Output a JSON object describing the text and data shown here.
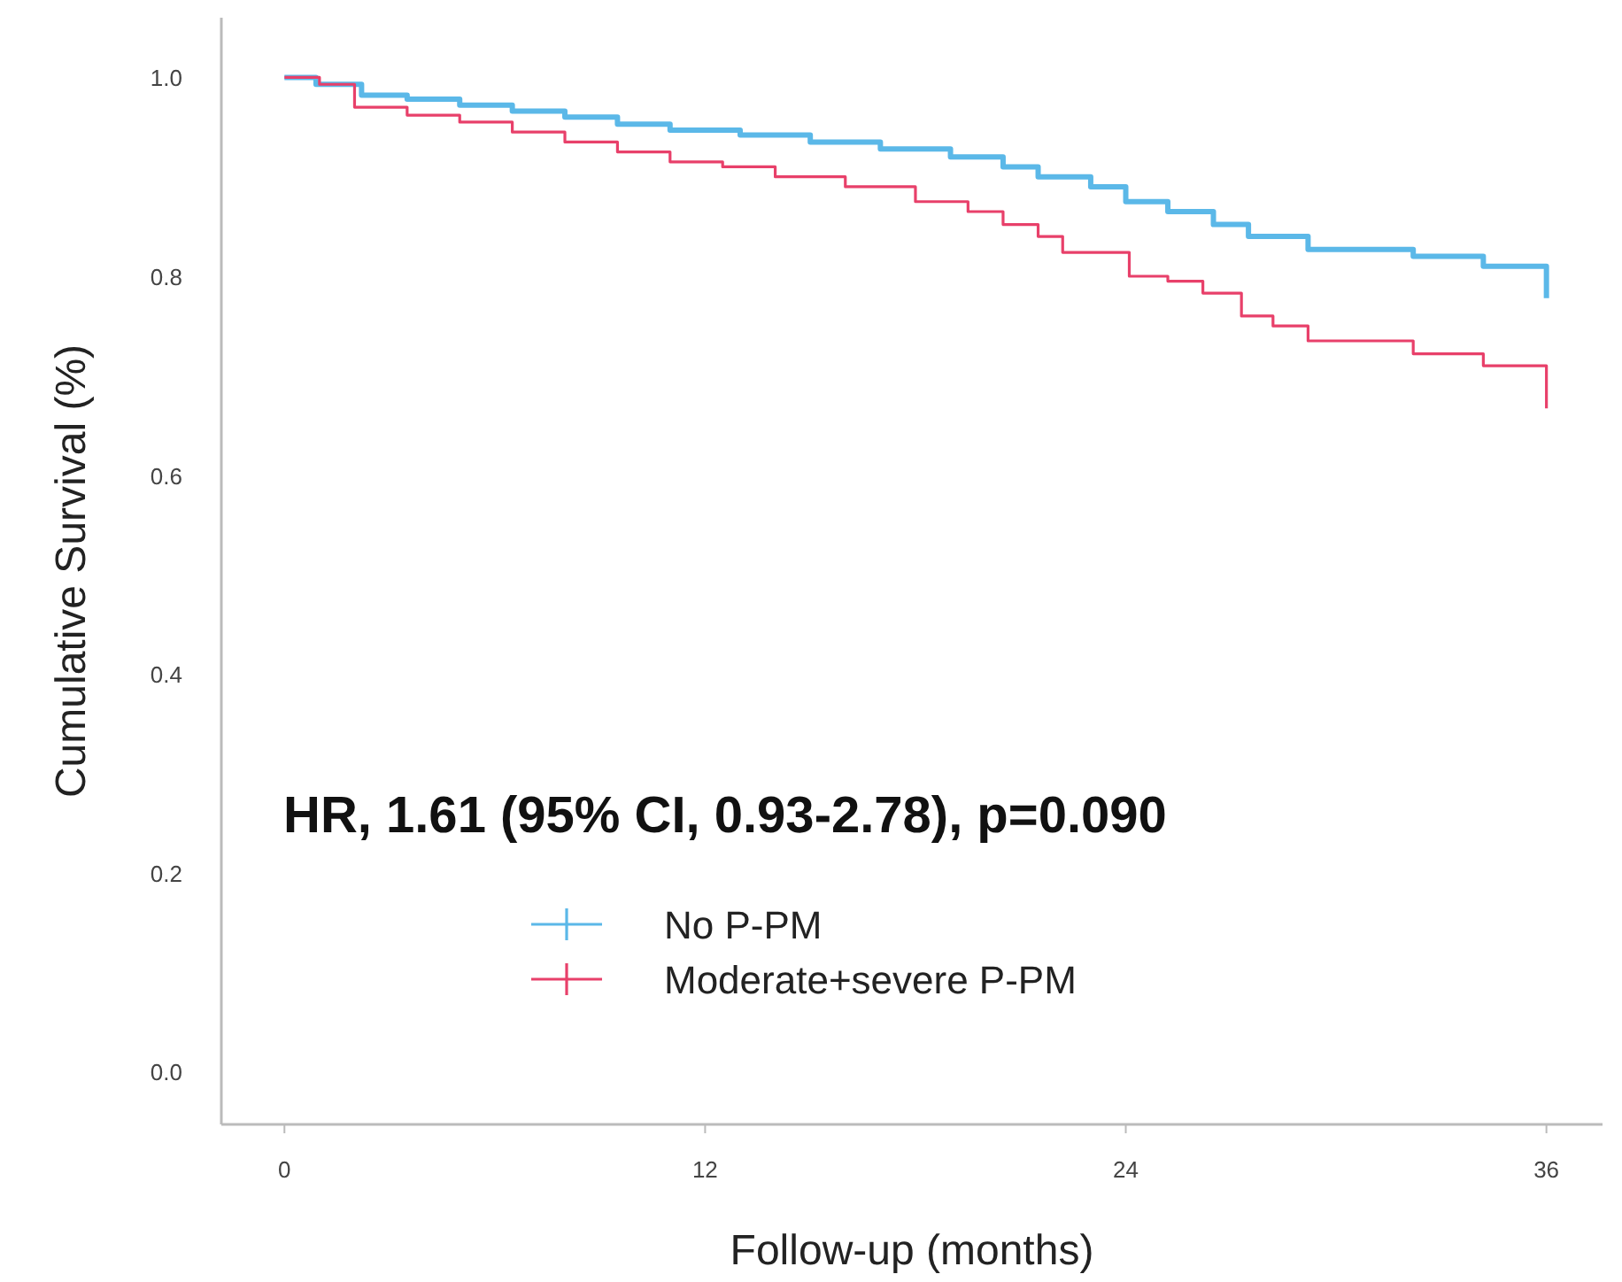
{
  "chart_data": {
    "type": "step",
    "xlabel": "Follow-up (months)",
    "ylabel": "Cumulative Survival (%)",
    "xlim": [
      -1.8,
      37.6
    ],
    "ylim": [
      -0.053,
      1.06
    ],
    "xticks": [
      0,
      12,
      24,
      36
    ],
    "yticks": [
      {
        "value": 0,
        "label": "0.0"
      },
      {
        "value": 0.2,
        "label": "0.2"
      },
      {
        "value": 0.4,
        "label": "0.4"
      },
      {
        "value": 0.6,
        "label": "0.6"
      },
      {
        "value": 0.8,
        "label": "0.8"
      },
      {
        "value": 1,
        "label": "1.0"
      }
    ],
    "grid": false,
    "legend": "bottom left",
    "annotations": [
      {
        "text": "HR, 1.61 (95% CI, 0.93-2.78), p=0.090"
      }
    ],
    "series": [
      {
        "name": "No P-PM",
        "color": "#5bb8e8",
        "x": [
          0,
          0.9,
          2.2,
          3.5,
          5,
          6.5,
          8,
          9.5,
          11,
          13,
          15,
          17,
          19,
          20.5,
          21.5,
          23,
          24,
          25.2,
          26.5,
          27.5,
          29.2,
          32.2,
          34.2,
          36,
          36
        ],
        "values": [
          1,
          0.993,
          0.982,
          0.978,
          0.972,
          0.966,
          0.96,
          0.953,
          0.947,
          0.942,
          0.935,
          0.928,
          0.92,
          0.91,
          0.9,
          0.89,
          0.875,
          0.865,
          0.852,
          0.84,
          0.827,
          0.82,
          0.81,
          0.81,
          0.778
        ]
      },
      {
        "name": "Moderate+severe P-PM",
        "color": "#e8406a",
        "x": [
          0,
          1,
          2,
          3.5,
          5,
          6.5,
          8,
          9.5,
          11,
          12.5,
          14,
          16,
          18,
          19.5,
          20.5,
          21.5,
          22.2,
          24.1,
          25.2,
          26.2,
          27.3,
          28.2,
          29.2,
          32.2,
          34.2,
          36,
          36
        ],
        "values": [
          1,
          0.993,
          0.97,
          0.962,
          0.955,
          0.945,
          0.935,
          0.925,
          0.915,
          0.91,
          0.9,
          0.89,
          0.875,
          0.865,
          0.852,
          0.84,
          0.824,
          0.8,
          0.795,
          0.783,
          0.76,
          0.75,
          0.735,
          0.722,
          0.71,
          0.71,
          0.667
        ]
      }
    ]
  }
}
